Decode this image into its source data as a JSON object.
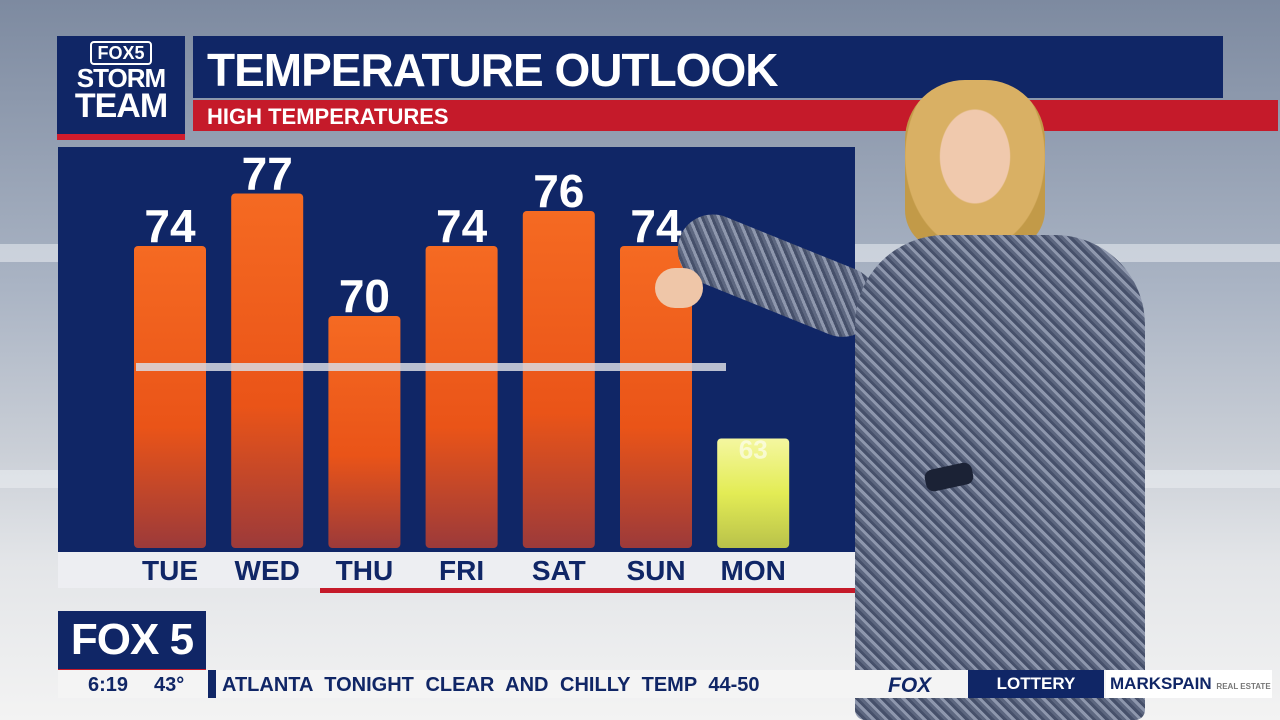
{
  "logo": {
    "line1": "FOX5",
    "line2": "STORM",
    "line3": "TEAM"
  },
  "header": {
    "title": "TEMPERATURE OUTLOOK",
    "subtitle": "HIGH TEMPERATURES"
  },
  "colors": {
    "navy": "#102666",
    "red": "#c51a2a",
    "bar_orange": "#f0561e",
    "bar_yellow": "#e6ee5a"
  },
  "chart_data": {
    "type": "bar",
    "title": "TEMPERATURE OUTLOOK",
    "subtitle": "HIGH TEMPERATURES",
    "categories": [
      "TUE",
      "WED",
      "THU",
      "FRI",
      "SAT",
      "SUN",
      "MON"
    ],
    "values": [
      74,
      77,
      70,
      74,
      76,
      74,
      63
    ],
    "labels_shown": [
      "74",
      "77",
      "70",
      "74",
      "76",
      "74",
      "63"
    ],
    "value_label_partially_hidden_for": [
      "MON"
    ],
    "normal_line": {
      "visible": true,
      "color": "white"
    },
    "grid": false,
    "legend": "none"
  },
  "bug": {
    "label": "FOX 5"
  },
  "ticker": {
    "time": "6:19",
    "temp": "43°",
    "message": "ATLANTA TONIGHT CLEAR AND CHILLY TEMP 44-50",
    "network": "FOX",
    "lottery": "LOTTERY",
    "sponsor": "MARKSPAIN",
    "sponsor_small": "REAL ESTATE"
  }
}
